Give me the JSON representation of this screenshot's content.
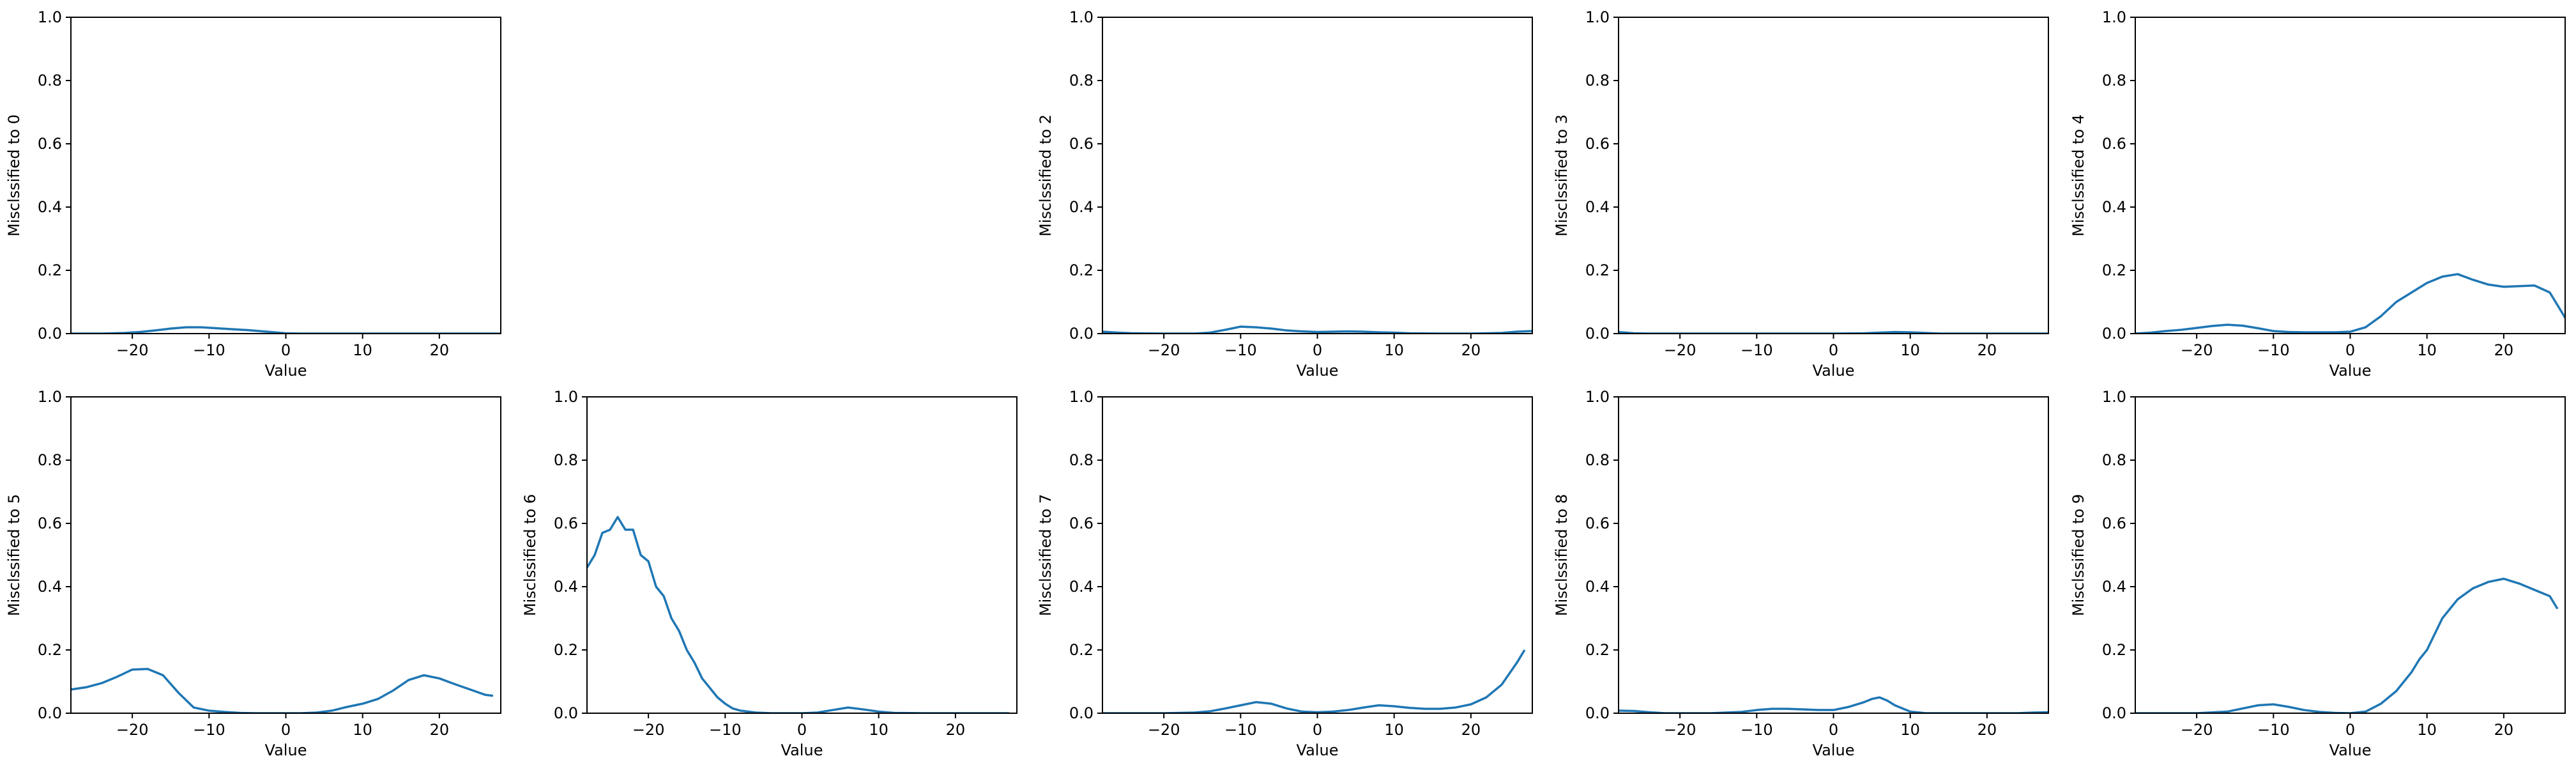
{
  "figure": {
    "line_color": "#1f77b4",
    "grid": false
  },
  "chart_data": [
    {
      "type": "line",
      "ylabel": "Misclssified to 0",
      "xlabel": "Value",
      "xlim": [
        -28,
        28
      ],
      "ylim": [
        0,
        1
      ],
      "xticks": [
        -20,
        -10,
        0,
        10,
        20
      ],
      "yticks": [
        0.0,
        0.2,
        0.4,
        0.6,
        0.8,
        1.0
      ],
      "series": [
        {
          "x": [
            -28,
            -24,
            -21,
            -19,
            -17,
            -15,
            -13,
            -11,
            -9,
            -7,
            -5,
            -3,
            -1,
            0,
            2,
            5,
            10,
            15,
            20,
            25,
            28
          ],
          "y": [
            0,
            0,
            0.002,
            0.005,
            0.01,
            0.016,
            0.02,
            0.02,
            0.017,
            0.014,
            0.011,
            0.007,
            0.003,
            0.001,
            0,
            0,
            0,
            0,
            0,
            0,
            0
          ]
        }
      ]
    },
    {
      "type": "line",
      "ylabel": "Misclssified to 2",
      "xlabel": "Value",
      "xlim": [
        -28,
        28
      ],
      "ylim": [
        0,
        1
      ],
      "xticks": [
        -20,
        -10,
        0,
        10,
        20
      ],
      "yticks": [
        0.0,
        0.2,
        0.4,
        0.6,
        0.8,
        1.0
      ],
      "series": [
        {
          "x": [
            -28,
            -26,
            -24,
            -20,
            -16,
            -14,
            -12,
            -10,
            -8,
            -6,
            -4,
            -2,
            0,
            2,
            4,
            6,
            8,
            10,
            12,
            16,
            20,
            24,
            26,
            28
          ],
          "y": [
            0.006,
            0.003,
            0.001,
            0,
            0,
            0.003,
            0.012,
            0.022,
            0.02,
            0.016,
            0.01,
            0.007,
            0.005,
            0.006,
            0.007,
            0.006,
            0.004,
            0.003,
            0.001,
            0,
            0,
            0.002,
            0.006,
            0.008
          ]
        }
      ]
    },
    {
      "type": "line",
      "ylabel": "Misclssified to 3",
      "xlabel": "Value",
      "xlim": [
        -28,
        28
      ],
      "ylim": [
        0,
        1
      ],
      "xticks": [
        -20,
        -10,
        0,
        10,
        20
      ],
      "yticks": [
        0.0,
        0.2,
        0.4,
        0.6,
        0.8,
        1.0
      ],
      "series": [
        {
          "x": [
            -28,
            -27,
            -26,
            -24,
            -20,
            -10,
            0,
            4,
            6,
            8,
            10,
            12,
            14,
            20,
            28
          ],
          "y": [
            0.005,
            0.003,
            0.001,
            0,
            0,
            0,
            0,
            0.001,
            0.003,
            0.005,
            0.004,
            0.002,
            0,
            0,
            0
          ]
        }
      ]
    },
    {
      "type": "line",
      "ylabel": "Misclssified to 4",
      "xlabel": "Value",
      "xlim": [
        -28,
        28
      ],
      "ylim": [
        0,
        1
      ],
      "xticks": [
        -20,
        -10,
        0,
        10,
        20
      ],
      "yticks": [
        0.0,
        0.2,
        0.4,
        0.6,
        0.8,
        1.0
      ],
      "series": [
        {
          "x": [
            -28,
            -26,
            -24,
            -22,
            -20,
            -18,
            -16,
            -14,
            -12,
            -10,
            -8,
            -6,
            -4,
            -2,
            0,
            2,
            4,
            6,
            8,
            10,
            12,
            14,
            16,
            18,
            20,
            22,
            24,
            26,
            28
          ],
          "y": [
            0,
            0.003,
            0.008,
            0.012,
            0.018,
            0.024,
            0.028,
            0.025,
            0.017,
            0.008,
            0.005,
            0.004,
            0.004,
            0.004,
            0.006,
            0.02,
            0.055,
            0.1,
            0.13,
            0.16,
            0.18,
            0.188,
            0.17,
            0.155,
            0.148,
            0.15,
            0.152,
            0.13,
            0.05
          ]
        }
      ]
    },
    {
      "type": "line",
      "ylabel": "Misclssified to 5",
      "xlabel": "Value",
      "xlim": [
        -28,
        28
      ],
      "ylim": [
        0,
        1
      ],
      "xticks": [
        -20,
        -10,
        0,
        10,
        20
      ],
      "yticks": [
        0.0,
        0.2,
        0.4,
        0.6,
        0.8,
        1.0
      ],
      "series": [
        {
          "x": [
            -28,
            -26,
            -24,
            -22,
            -20,
            -18,
            -16,
            -14,
            -12,
            -10,
            -8,
            -6,
            -4,
            -2,
            0,
            2,
            4,
            6,
            8,
            10,
            12,
            14,
            16,
            18,
            20,
            22,
            24,
            26,
            27
          ],
          "y": [
            0.075,
            0.082,
            0.095,
            0.115,
            0.138,
            0.14,
            0.12,
            0.065,
            0.018,
            0.008,
            0.004,
            0.001,
            0,
            0,
            0,
            0,
            0.002,
            0.008,
            0.02,
            0.03,
            0.045,
            0.072,
            0.105,
            0.12,
            0.11,
            0.092,
            0.075,
            0.058,
            0.055
          ]
        }
      ]
    },
    {
      "type": "line",
      "ylabel": "Misclssified to 6",
      "xlabel": "Value",
      "xlim": [
        -28,
        28
      ],
      "ylim": [
        0,
        1
      ],
      "xticks": [
        -20,
        -10,
        0,
        10,
        20
      ],
      "yticks": [
        0.0,
        0.2,
        0.4,
        0.6,
        0.8,
        1.0
      ],
      "series": [
        {
          "x": [
            -28,
            -27,
            -26,
            -25,
            -24,
            -23,
            -22,
            -21,
            -20,
            -19,
            -18,
            -17,
            -16,
            -15,
            -14,
            -13,
            -12,
            -11,
            -10,
            -9,
            -8,
            -6,
            -4,
            -2,
            0,
            2,
            4,
            6,
            8,
            10,
            12,
            16,
            20,
            24,
            27
          ],
          "y": [
            0.46,
            0.5,
            0.57,
            0.58,
            0.62,
            0.58,
            0.58,
            0.5,
            0.48,
            0.4,
            0.37,
            0.3,
            0.26,
            0.2,
            0.16,
            0.11,
            0.08,
            0.05,
            0.03,
            0.015,
            0.008,
            0.002,
            0,
            0,
            0,
            0.002,
            0.01,
            0.018,
            0.012,
            0.005,
            0.001,
            0,
            0,
            0,
            0
          ]
        }
      ]
    },
    {
      "type": "line",
      "ylabel": "Misclssified to 7",
      "xlabel": "Value",
      "xlim": [
        -28,
        28
      ],
      "ylim": [
        0,
        1
      ],
      "xticks": [
        -20,
        -10,
        0,
        10,
        20
      ],
      "yticks": [
        0.0,
        0.2,
        0.4,
        0.6,
        0.8,
        1.0
      ],
      "series": [
        {
          "x": [
            -28,
            -24,
            -20,
            -16,
            -14,
            -12,
            -10,
            -8,
            -6,
            -4,
            -2,
            0,
            2,
            4,
            6,
            8,
            10,
            12,
            14,
            16,
            18,
            20,
            22,
            24,
            26,
            27
          ],
          "y": [
            0,
            0,
            0,
            0.002,
            0.006,
            0.015,
            0.025,
            0.035,
            0.03,
            0.015,
            0.005,
            0.003,
            0.005,
            0.01,
            0.018,
            0.025,
            0.022,
            0.017,
            0.014,
            0.014,
            0.018,
            0.028,
            0.05,
            0.09,
            0.16,
            0.2
          ]
        }
      ]
    },
    {
      "type": "line",
      "ylabel": "Misclssified to 8",
      "xlabel": "Value",
      "xlim": [
        -28,
        28
      ],
      "ylim": [
        0,
        1
      ],
      "xticks": [
        -20,
        -10,
        0,
        10,
        20
      ],
      "yticks": [
        0.0,
        0.2,
        0.4,
        0.6,
        0.8,
        1.0
      ],
      "series": [
        {
          "x": [
            -28,
            -26,
            -24,
            -22,
            -20,
            -16,
            -12,
            -10,
            -8,
            -6,
            -4,
            -2,
            0,
            2,
            4,
            5,
            6,
            7,
            8,
            10,
            12,
            16,
            20,
            24,
            26,
            28
          ],
          "y": [
            0.008,
            0.007,
            0.003,
            0,
            0,
            0,
            0.004,
            0.01,
            0.014,
            0.014,
            0.012,
            0.01,
            0.01,
            0.02,
            0.035,
            0.045,
            0.05,
            0.04,
            0.025,
            0.005,
            0,
            0,
            0,
            0,
            0.002,
            0.003
          ]
        }
      ]
    },
    {
      "type": "line",
      "ylabel": "Misclssified to 9",
      "xlabel": "Value",
      "xlim": [
        -28,
        28
      ],
      "ylim": [
        0,
        1
      ],
      "xticks": [
        -20,
        -10,
        0,
        10,
        20
      ],
      "yticks": [
        0.0,
        0.2,
        0.4,
        0.6,
        0.8,
        1.0
      ],
      "series": [
        {
          "x": [
            -28,
            -20,
            -16,
            -14,
            -12,
            -10,
            -8,
            -6,
            -4,
            -2,
            0,
            2,
            4,
            5,
            6,
            7,
            8,
            9,
            10,
            11,
            12,
            13,
            14,
            16,
            18,
            20,
            22,
            24,
            26,
            27
          ],
          "y": [
            0,
            0,
            0.005,
            0.015,
            0.025,
            0.028,
            0.02,
            0.01,
            0.004,
            0.001,
            0,
            0.005,
            0.03,
            0.05,
            0.07,
            0.1,
            0.13,
            0.17,
            0.2,
            0.25,
            0.3,
            0.33,
            0.36,
            0.395,
            0.415,
            0.425,
            0.41,
            0.39,
            0.37,
            0.33
          ]
        }
      ]
    }
  ]
}
